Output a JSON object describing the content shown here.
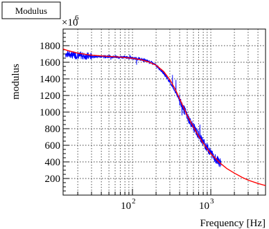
{
  "chart_data": {
    "type": "line",
    "title": "Modulus",
    "xlabel": "Frequency [Hz]",
    "ylabel": "modulus",
    "y_multiplier_label": "×10",
    "y_multiplier_exponent": "6",
    "x_scale": "log",
    "xlim": [
      13,
      5000
    ],
    "ylim": [
      0,
      2000
    ],
    "grid": true,
    "x_tick_labels": [
      {
        "value": 100,
        "base": "10",
        "exp": "2"
      },
      {
        "value": 1000,
        "base": "10",
        "exp": "3"
      }
    ],
    "y_ticks": [
      200,
      400,
      600,
      800,
      1000,
      1200,
      1400,
      1600,
      1800
    ],
    "series": [
      {
        "kind": "measured",
        "color": "#0000ff",
        "x_range": [
          14,
          1350
        ],
        "points": [
          [
            14,
            1700
          ],
          [
            16,
            1690
          ],
          [
            18,
            1685
          ],
          [
            20,
            1680
          ],
          [
            25,
            1675
          ],
          [
            30,
            1672
          ],
          [
            40,
            1670
          ],
          [
            50,
            1668
          ],
          [
            60,
            1665
          ],
          [
            70,
            1662
          ],
          [
            80,
            1660
          ],
          [
            90,
            1655
          ],
          [
            100,
            1650
          ],
          [
            120,
            1640
          ],
          [
            140,
            1625
          ],
          [
            160,
            1610
          ],
          [
            180,
            1590
          ],
          [
            200,
            1560
          ],
          [
            230,
            1510
          ],
          [
            260,
            1450
          ],
          [
            300,
            1360
          ],
          [
            350,
            1250
          ],
          [
            400,
            1140
          ],
          [
            450,
            1040
          ],
          [
            500,
            950
          ],
          [
            550,
            880
          ],
          [
            600,
            820
          ],
          [
            700,
            720
          ],
          [
            800,
            640
          ],
          [
            900,
            570
          ],
          [
            1000,
            510
          ],
          [
            1100,
            460
          ],
          [
            1200,
            420
          ],
          [
            1350,
            380
          ]
        ]
      },
      {
        "kind": "fit",
        "color": "#ff0000",
        "points": [
          [
            13,
            1760
          ],
          [
            15,
            1740
          ],
          [
            20,
            1710
          ],
          [
            30,
            1685
          ],
          [
            50,
            1670
          ],
          [
            70,
            1662
          ],
          [
            100,
            1648
          ],
          [
            130,
            1630
          ],
          [
            160,
            1605
          ],
          [
            200,
            1565
          ],
          [
            250,
            1490
          ],
          [
            300,
            1390
          ],
          [
            350,
            1280
          ],
          [
            400,
            1160
          ],
          [
            500,
            960
          ],
          [
            600,
            820
          ],
          [
            700,
            710
          ],
          [
            800,
            625
          ],
          [
            1000,
            500
          ],
          [
            1300,
            390
          ],
          [
            1600,
            320
          ],
          [
            2000,
            265
          ],
          [
            2500,
            215
          ],
          [
            3000,
            180
          ],
          [
            4000,
            140
          ],
          [
            5000,
            115
          ]
        ]
      }
    ]
  }
}
